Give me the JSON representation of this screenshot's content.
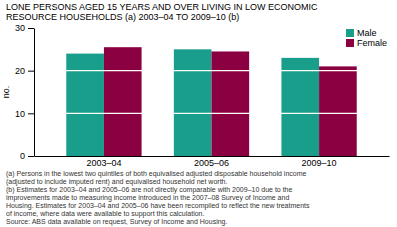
{
  "chart_data": {
    "type": "bar",
    "title": [
      "LONE PERSONS AGED 15 YEARS AND OVER LIVING IN LOW ECONOMIC",
      "RESOURCE HOUSEHOLDS (a) 2003–04 TO 2009–10 (b)"
    ],
    "categories": [
      "2003–04",
      "2005–06",
      "2009–10"
    ],
    "series": [
      {
        "name": "Male",
        "color": "#1a9e8c",
        "values": [
          24.0,
          25.0,
          23.0
        ]
      },
      {
        "name": "Female",
        "color": "#8b0040",
        "values": [
          25.5,
          24.5,
          21.0
        ]
      }
    ],
    "ylabel": "no.",
    "ylim": [
      0,
      30
    ],
    "yticks": [
      0,
      10,
      20,
      30
    ],
    "grid": true,
    "legend": "top-right",
    "annotations": [
      "(a) Persons in the lowest two quintiles of both equivalised adjusted disposable household  income",
      "(adjusted to include imputed rent) and equivalised household net worth.",
      "(b) Estimates for 2003–04 and 2005–06 are not directly comparable with 2009–10 due to the",
      "improvements made to measuring income introduced in the 2007–08 Survey of Income and",
      "Housing. Estimates for 2003–04 and 2005–06 have been recompiled to reflect the new treatments",
      "of income, where data were available to support this calculation.",
      "Source: ABS data available on request,  Survey of Income and Housing."
    ]
  }
}
